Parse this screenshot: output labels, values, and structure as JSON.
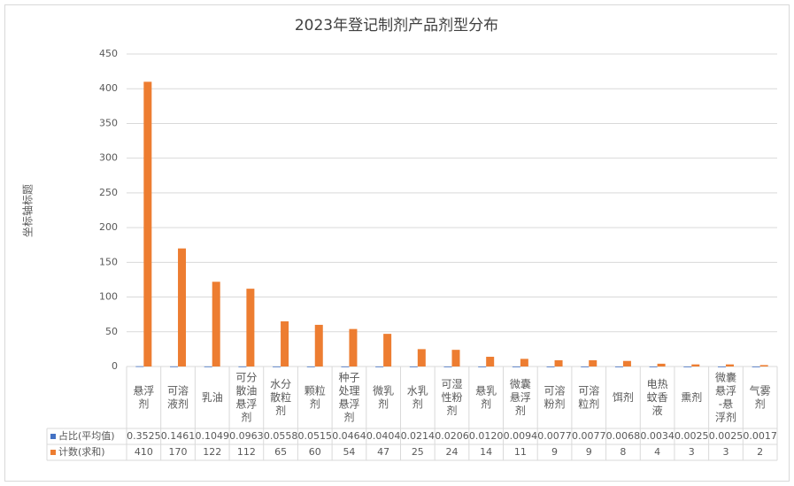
{
  "chart_data": {
    "type": "bar",
    "title": "2023年登记制剂产品剂型分布",
    "y_label": "坐标轴标题",
    "categories": [
      "悬浮剂",
      "可溶液剂",
      "乳油",
      "可分散油悬浮剂",
      "水分散粒剂",
      "颗粒剂",
      "种子处理悬浮剂",
      "微乳剂",
      "水乳剂",
      "可湿性粉剂",
      "悬乳剂",
      "微囊悬浮剂",
      "可溶粉剂",
      "可溶粒剂",
      "饵剂",
      "电热蚊香液",
      "熏剂",
      "微囊悬浮-悬浮剂",
      "气雾剂"
    ],
    "series": [
      {
        "name": "占比(平均值)",
        "color": "#4472c4",
        "values": [
          0.3525,
          0.1461,
          0.1049,
          0.0963,
          0.0558,
          0.0515,
          0.0464,
          0.0404,
          0.0214,
          0.0206,
          0.012,
          0.0094,
          0.0077,
          0.0077,
          0.0068,
          0.0034,
          0.0025,
          0.0025,
          0.0017
        ],
        "value_labels": [
          "0.3525",
          "0.1461",
          "0.1049",
          "0.0963",
          "0.0558",
          "0.0515",
          "0.0464",
          "0.0404",
          "0.0214",
          "0.0206",
          "0.0120",
          "0.0094",
          "0.0077",
          "0.0077",
          "0.0068",
          "0.0034",
          "0.0025",
          "0.0025",
          "0.0017"
        ]
      },
      {
        "name": "计数(求和)",
        "color": "#ed7d31",
        "values": [
          410,
          170,
          122,
          112,
          65,
          60,
          54,
          47,
          25,
          24,
          14,
          11,
          9,
          9,
          8,
          4,
          3,
          3,
          2
        ]
      }
    ],
    "ylim": [
      0,
      450
    ],
    "yticks": [
      0,
      50,
      100,
      150,
      200,
      250,
      300,
      350,
      400,
      450
    ],
    "grid": true
  }
}
